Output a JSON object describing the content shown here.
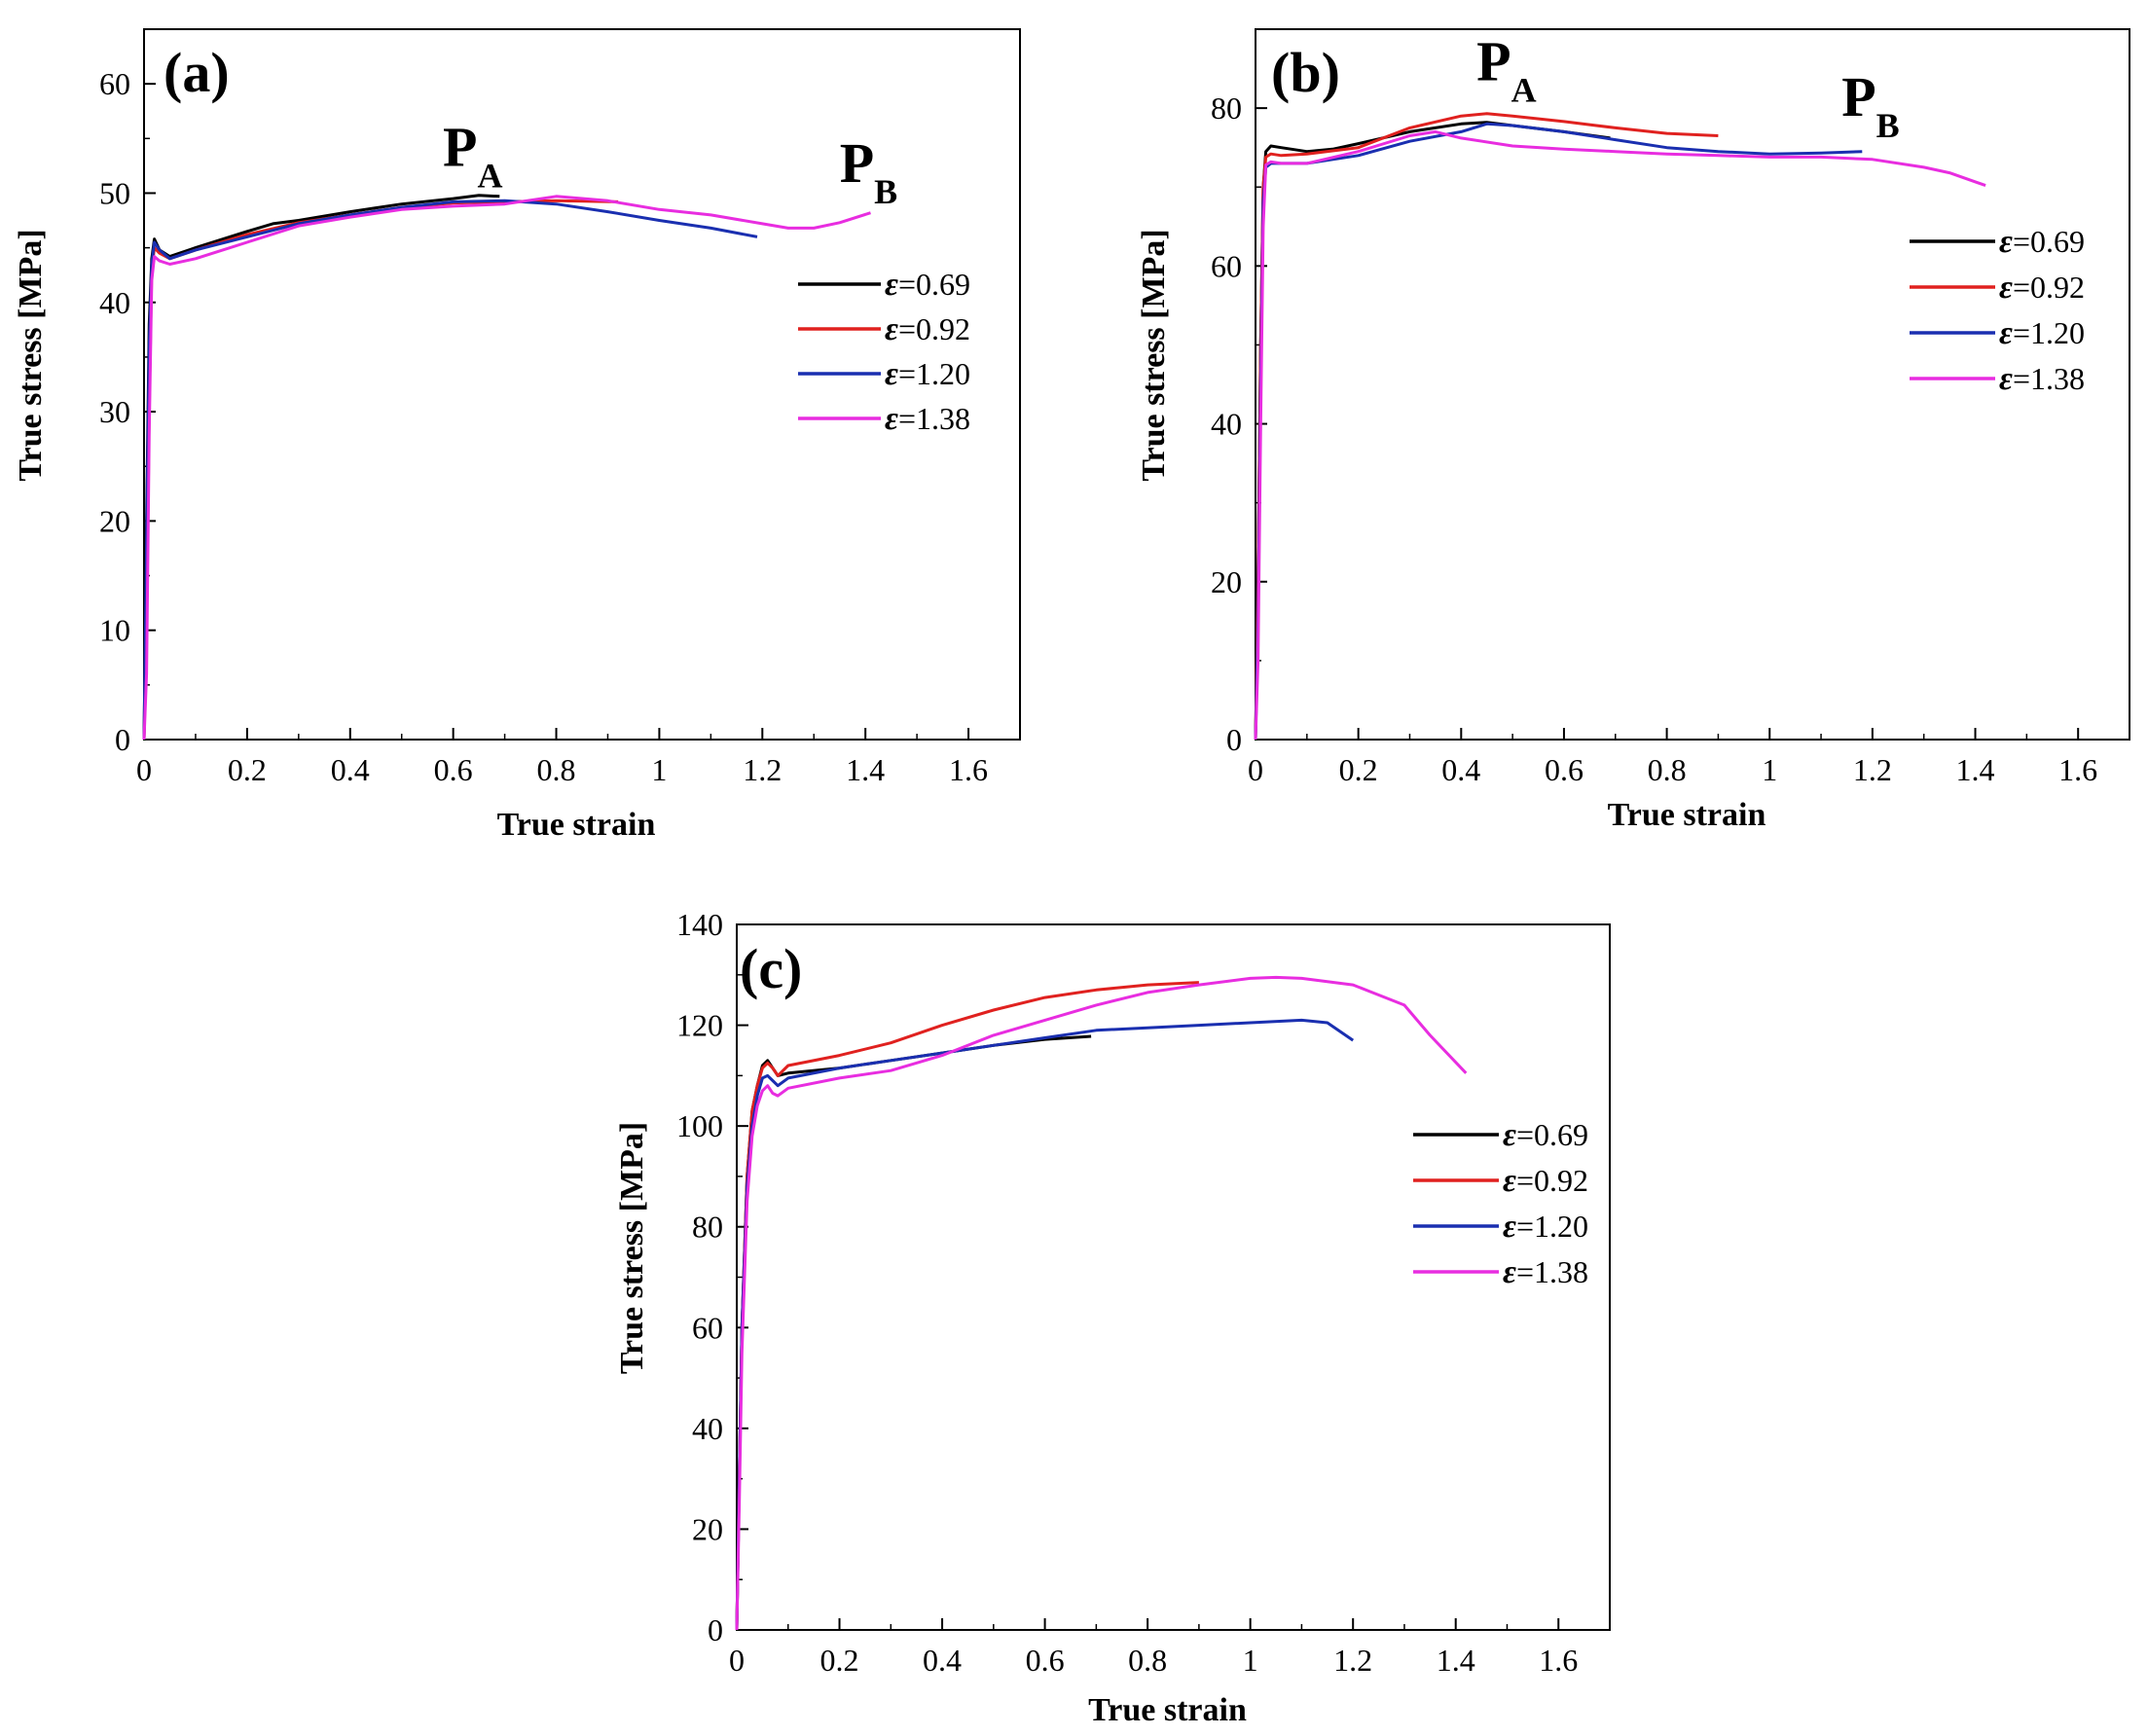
{
  "figure": {
    "legend_labels": [
      "0.69",
      "0.92",
      "1.20",
      "1.38"
    ],
    "legend_symbol": "ε",
    "legend_prefix": "="
  },
  "chart_data": [
    {
      "type": "line",
      "panel_label": "(a)",
      "xlabel": "True strain",
      "ylabel": "True stress [MPa]",
      "xlim": [
        0,
        1.7
      ],
      "ylim": [
        0,
        65
      ],
      "xticks": [
        0,
        0.2,
        0.4,
        0.6,
        0.8,
        1,
        1.2,
        1.4,
        1.6
      ],
      "xtick_labels": [
        "0",
        "0.2",
        "0.4",
        "0.6",
        "0.8",
        "1",
        "1.2",
        "1.4",
        "1.6"
      ],
      "yticks": [
        0,
        10,
        20,
        30,
        40,
        50,
        60
      ],
      "ytick_labels": [
        "0",
        "10",
        "20",
        "30",
        "40",
        "50",
        "60"
      ],
      "legend_position": "right-middle",
      "annotations": [
        {
          "main": "P",
          "sub": "A",
          "x": 0.58,
          "y": 52.5
        },
        {
          "main": "P",
          "sub": "B",
          "x": 1.35,
          "y": 51.0
        }
      ],
      "series": [
        {
          "name": "ε=0.69",
          "color": "#000000",
          "x": [
            0,
            0.005,
            0.01,
            0.015,
            0.02,
            0.03,
            0.05,
            0.1,
            0.2,
            0.25,
            0.3,
            0.4,
            0.5,
            0.6,
            0.65,
            0.69
          ],
          "y": [
            0,
            20,
            38,
            44,
            45.8,
            44.8,
            44.2,
            45.0,
            46.5,
            47.2,
            47.5,
            48.3,
            49.0,
            49.5,
            49.8,
            49.7
          ]
        },
        {
          "name": "ε=0.92",
          "color": "#e0211f",
          "x": [
            0,
            0.005,
            0.01,
            0.015,
            0.02,
            0.03,
            0.05,
            0.1,
            0.2,
            0.3,
            0.4,
            0.5,
            0.6,
            0.7,
            0.8,
            0.92
          ],
          "y": [
            0,
            10,
            30,
            43,
            45.0,
            44.5,
            44.0,
            44.8,
            46.2,
            47.3,
            48.0,
            48.7,
            49.1,
            49.2,
            49.3,
            49.2
          ]
        },
        {
          "name": "ε=1.20",
          "color": "#1a2fb0",
          "x": [
            0,
            0.005,
            0.01,
            0.015,
            0.02,
            0.03,
            0.05,
            0.1,
            0.2,
            0.3,
            0.4,
            0.5,
            0.6,
            0.7,
            0.8,
            0.9,
            1.0,
            1.1,
            1.19
          ],
          "y": [
            0,
            18,
            36,
            43.5,
            45.5,
            44.8,
            44.0,
            44.8,
            46.0,
            47.2,
            48.0,
            48.7,
            49.2,
            49.3,
            49.0,
            48.3,
            47.5,
            46.8,
            46.0
          ]
        },
        {
          "name": "ε=1.38",
          "color": "#e82de0",
          "x": [
            0,
            0.005,
            0.01,
            0.015,
            0.02,
            0.03,
            0.05,
            0.1,
            0.2,
            0.3,
            0.4,
            0.5,
            0.6,
            0.7,
            0.8,
            0.9,
            1.0,
            1.1,
            1.2,
            1.25,
            1.3,
            1.35,
            1.41
          ],
          "y": [
            0,
            6,
            28,
            42,
            44.2,
            43.8,
            43.5,
            44.0,
            45.5,
            47.0,
            47.8,
            48.5,
            48.8,
            49.0,
            49.7,
            49.3,
            48.5,
            48.0,
            47.2,
            46.8,
            46.8,
            47.3,
            48.2
          ]
        }
      ]
    },
    {
      "type": "line",
      "panel_label": "(b)",
      "xlabel": "True strain",
      "ylabel": "True stress [MPa]",
      "xlim": [
        0,
        1.7
      ],
      "ylim": [
        0,
        90
      ],
      "xticks": [
        0,
        0.2,
        0.4,
        0.6,
        0.8,
        1,
        1.2,
        1.4,
        1.6
      ],
      "xtick_labels": [
        "0",
        "0.2",
        "0.4",
        "0.6",
        "0.8",
        "1",
        "1.2",
        "1.4",
        "1.6"
      ],
      "yticks": [
        0,
        20,
        40,
        60,
        80
      ],
      "ytick_labels": [
        "0",
        "20",
        "40",
        "60",
        "80"
      ],
      "legend_position": "right-upper",
      "annotations": [
        {
          "main": "P",
          "sub": "A",
          "x": 0.43,
          "y": 83.5
        },
        {
          "main": "P",
          "sub": "B",
          "x": 1.14,
          "y": 79.0
        }
      ],
      "series": [
        {
          "name": "ε=0.69",
          "color": "#000000",
          "x": [
            0,
            0.005,
            0.01,
            0.015,
            0.02,
            0.03,
            0.05,
            0.1,
            0.15,
            0.2,
            0.3,
            0.4,
            0.45,
            0.5,
            0.6,
            0.69
          ],
          "y": [
            0,
            20,
            50,
            70,
            74.5,
            75.2,
            75.0,
            74.5,
            74.8,
            75.5,
            77.0,
            78.0,
            78.2,
            77.8,
            77.0,
            76.2
          ]
        },
        {
          "name": "ε=0.92",
          "color": "#e0211f",
          "x": [
            0,
            0.005,
            0.01,
            0.015,
            0.02,
            0.03,
            0.05,
            0.1,
            0.2,
            0.3,
            0.4,
            0.45,
            0.5,
            0.6,
            0.7,
            0.8,
            0.9
          ],
          "y": [
            0,
            20,
            50,
            70,
            73.8,
            74.2,
            74.0,
            74.2,
            75.0,
            77.5,
            79.0,
            79.3,
            79.0,
            78.3,
            77.5,
            76.8,
            76.5
          ]
        },
        {
          "name": "ε=1.20",
          "color": "#1a2fb0",
          "x": [
            0,
            0.005,
            0.01,
            0.015,
            0.02,
            0.03,
            0.05,
            0.1,
            0.2,
            0.3,
            0.4,
            0.45,
            0.5,
            0.6,
            0.7,
            0.8,
            0.9,
            1.0,
            1.1,
            1.18
          ],
          "y": [
            0,
            15,
            45,
            68,
            72.5,
            73.0,
            73.0,
            73.0,
            74.0,
            75.8,
            77.0,
            78.0,
            77.8,
            77.0,
            76.0,
            75.0,
            74.5,
            74.2,
            74.3,
            74.5
          ]
        },
        {
          "name": "ε=1.38",
          "color": "#e82de0",
          "x": [
            0,
            0.005,
            0.01,
            0.015,
            0.02,
            0.03,
            0.05,
            0.1,
            0.2,
            0.3,
            0.35,
            0.4,
            0.5,
            0.6,
            0.7,
            0.8,
            0.9,
            1.0,
            1.1,
            1.2,
            1.3,
            1.35,
            1.42
          ],
          "y": [
            0,
            10,
            40,
            65,
            72.8,
            73.2,
            73.0,
            73.0,
            74.5,
            76.5,
            77.0,
            76.2,
            75.2,
            74.8,
            74.5,
            74.2,
            74.0,
            73.8,
            73.8,
            73.5,
            72.5,
            71.8,
            70.2
          ]
        }
      ]
    },
    {
      "type": "line",
      "panel_label": "(c)",
      "xlabel": "True strain",
      "ylabel": "True stress [MPa]",
      "xlim": [
        0,
        1.7
      ],
      "ylim": [
        0,
        140
      ],
      "xticks": [
        0,
        0.2,
        0.4,
        0.6,
        0.8,
        1,
        1.2,
        1.4,
        1.6
      ],
      "xtick_labels": [
        "0",
        "0.2",
        "0.4",
        "0.6",
        "0.8",
        "1",
        "1.2",
        "1.4",
        "1.6"
      ],
      "yticks": [
        0,
        20,
        40,
        60,
        80,
        100,
        120,
        140
      ],
      "ytick_labels": [
        "0",
        "20",
        "40",
        "60",
        "80",
        "100",
        "120",
        "140"
      ],
      "legend_position": "right-middle",
      "annotations": [],
      "series": [
        {
          "name": "ε=0.69",
          "color": "#000000",
          "x": [
            0,
            0.005,
            0.01,
            0.02,
            0.03,
            0.04,
            0.05,
            0.06,
            0.07,
            0.08,
            0.1,
            0.2,
            0.3,
            0.4,
            0.5,
            0.6,
            0.69
          ],
          "y": [
            0,
            30,
            60,
            90,
            103,
            108,
            112,
            113,
            111.5,
            110,
            110.5,
            111.5,
            113,
            114.5,
            116,
            117.2,
            117.8
          ]
        },
        {
          "name": "ε=0.92",
          "color": "#e0211f",
          "x": [
            0,
            0.005,
            0.01,
            0.02,
            0.03,
            0.04,
            0.05,
            0.06,
            0.07,
            0.08,
            0.1,
            0.2,
            0.3,
            0.4,
            0.5,
            0.6,
            0.7,
            0.8,
            0.9
          ],
          "y": [
            0,
            30,
            60,
            90,
            103,
            108,
            111.5,
            112.5,
            111.5,
            110,
            112,
            114,
            116.5,
            120,
            123,
            125.5,
            127,
            128,
            128.5
          ]
        },
        {
          "name": "ε=1.20",
          "color": "#1a2fb0",
          "x": [
            0,
            0.005,
            0.01,
            0.02,
            0.03,
            0.04,
            0.05,
            0.06,
            0.07,
            0.08,
            0.1,
            0.2,
            0.3,
            0.4,
            0.5,
            0.6,
            0.7,
            0.8,
            0.9,
            1.0,
            1.1,
            1.15,
            1.2
          ],
          "y": [
            0,
            30,
            60,
            88,
            100,
            106,
            109.5,
            110,
            109,
            108,
            109.5,
            111.5,
            113,
            114.5,
            116,
            117.5,
            119,
            119.5,
            120,
            120.5,
            121,
            120.5,
            117
          ]
        },
        {
          "name": "ε=1.38",
          "color": "#e82de0",
          "x": [
            0,
            0.005,
            0.01,
            0.02,
            0.03,
            0.04,
            0.05,
            0.06,
            0.07,
            0.08,
            0.1,
            0.2,
            0.3,
            0.4,
            0.5,
            0.6,
            0.7,
            0.8,
            0.9,
            1.0,
            1.05,
            1.1,
            1.2,
            1.3,
            1.35,
            1.42
          ],
          "y": [
            0,
            25,
            55,
            85,
            98,
            104,
            107,
            108,
            106.5,
            106,
            107.5,
            109.5,
            111,
            114,
            118,
            121,
            124,
            126.5,
            128,
            129.3,
            129.5,
            129.3,
            128,
            124,
            118,
            110.5
          ]
        }
      ]
    }
  ]
}
